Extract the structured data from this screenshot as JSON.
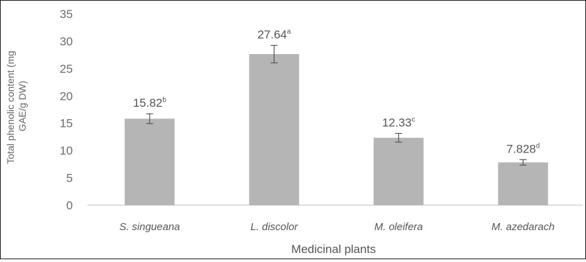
{
  "chart_data": {
    "type": "bar",
    "categories": [
      "S. singueana",
      "L. discolor",
      "M. oleifera",
      "M. azedarach"
    ],
    "values": [
      15.82,
      27.64,
      12.33,
      7.828
    ],
    "errors": [
      0.9,
      1.6,
      0.8,
      0.5
    ],
    "data_labels": [
      "15.82",
      "27.64",
      "12.33",
      "7.828"
    ],
    "significance_letters": [
      "b",
      "a",
      "c",
      "d"
    ],
    "ylabel_lines": [
      "Total phenolic content (mg",
      "GAE/g DW)"
    ],
    "xlabel": "Medicinal plants",
    "ylim": [
      0,
      35
    ],
    "yticks": [
      0,
      5,
      10,
      15,
      20,
      25,
      30,
      35
    ],
    "grid": false,
    "legend": "none",
    "colors": {
      "bar": "#b5b5b5",
      "error_bar": "#555555",
      "axis": "#bfbfbf"
    }
  }
}
